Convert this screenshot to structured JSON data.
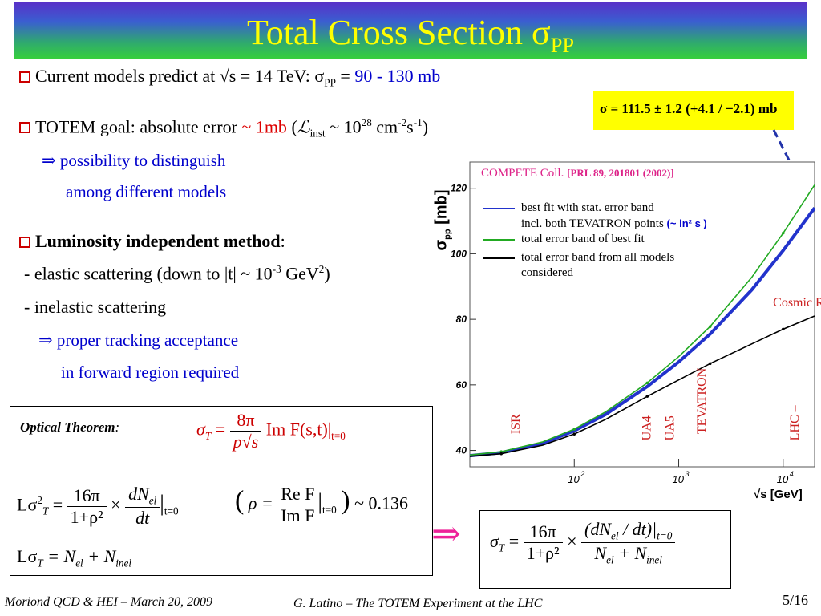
{
  "title": {
    "text": "Total Cross Section σ",
    "sub": "PP"
  },
  "bullets": {
    "b1": {
      "pre": "Current models predict at √s = 14 TeV: σ",
      "sub": "PP",
      "mid": " = ",
      "value": "90 - 130 mb"
    },
    "b2": {
      "pre": "TOTEM goal: absolute error  ",
      "value": "~ 1mb",
      "paren_open": " (",
      "lum": "ℒ",
      "lum_sub": "inst",
      "approx": " ~ 10",
      "exp1": "28",
      "unit1": " cm",
      "exp2": "-2",
      "unit2": "s",
      "exp3": "-1",
      "paren_close": ")"
    },
    "b2_sub1": "⇒ possibility to distinguish",
    "b2_sub2": "among different models",
    "b3": {
      "bold": "Luminosity independent method",
      "colon": ":"
    },
    "b3_l1": {
      "pre": "- elastic scattering (down to |t| ~ 10",
      "exp1": "-3",
      "mid": " GeV",
      "exp2": "2",
      "post": ")"
    },
    "b3_l2": "- inelastic scattering",
    "b3_sub1": "⇒ proper tracking acceptance",
    "b3_sub2": "in forward region required"
  },
  "optical": {
    "label": "Optical Theorem",
    "colon": ":",
    "eq1_lhs": "σ",
    "eq1_lhs_sub": "T",
    "eq1_num": "8π",
    "eq1_den": "p√s",
    "eq1_rhs": "Im F(s,t)|",
    "eq1_rhs_sub": "t=0",
    "eq2_lhs": "Lσ",
    "eq2_lhs_sup": "2",
    "eq2_lhs_sub": "T",
    "eq2_num": "16π",
    "eq2_den": "1+ρ²",
    "eq2_dnum": "dN",
    "eq2_dnum_sub": "el",
    "eq2_dden": "dt",
    "eq2_eval": "t=0",
    "rho_lhs": "ρ =",
    "rho_num": "Re F",
    "rho_den": "Im F",
    "rho_val": "~ 0.136",
    "eq3": "Lσ",
    "eq3_sub": "T",
    "eq3_rhs": "= N",
    "eq3_n1": "el",
    "eq3_plus": " + N",
    "eq3_n2": "inel"
  },
  "result": {
    "arrow": "⇒",
    "lhs": "σ",
    "lhs_sub": "T",
    "num": "16π",
    "den": "1+ρ²",
    "rnum": "(dN",
    "rnum_sub": "el",
    "rnum_post": " / dt)|",
    "rnum_eval": "t=0",
    "rden": "N",
    "rden_sub1": "el",
    "rden_mid": " + N",
    "rden_sub2": "inel"
  },
  "yellow_formula": "σ = 111.5 ± 1.2 (+4.1 / −2.1) mb",
  "chart_data": {
    "type": "line",
    "title": "COMPETE Coll.",
    "title_ref": "[PRL 89, 201801 (2002)]",
    "ylabel": "σ",
    "ylabel_sub": "pp",
    "ylabel_unit": "[mb]",
    "xlabel": "√s [GeV]",
    "xscale": "log",
    "xlim": [
      10,
      20000
    ],
    "ylim": [
      35,
      128
    ],
    "yticks": [
      40,
      60,
      80,
      100,
      120
    ],
    "xticks": [
      {
        "value": 100,
        "label": "10",
        "exp": "2"
      },
      {
        "value": 1000,
        "label": "10",
        "exp": "3"
      },
      {
        "value": 10000,
        "label": "10",
        "exp": "4"
      }
    ],
    "legend": [
      {
        "label": "best fit with stat. error band",
        "color": "#2233cc"
      },
      {
        "label": "incl. both TEVATRON points",
        "color": "#2233cc",
        "note": "(~ ln² s )"
      },
      {
        "label": "total error band of best fit",
        "color": "#22aa22"
      },
      {
        "label": "total error band from all models",
        "label2": "considered",
        "color": "#000000"
      }
    ],
    "series": [
      {
        "name": "best fit with stat. error band",
        "color": "#2233cc",
        "x": [
          10,
          20,
          50,
          100,
          200,
          500,
          1000,
          2000,
          5000,
          10000,
          20000
        ],
        "y": [
          38.4,
          39.3,
          42.2,
          46.0,
          51.0,
          59.5,
          67.0,
          75.5,
          89.0,
          101.0,
          114.0
        ]
      },
      {
        "name": "total error band of best fit",
        "color": "#22aa22",
        "x": [
          10,
          20,
          50,
          100,
          200,
          500,
          1000,
          2000,
          5000,
          10000,
          20000
        ],
        "y": [
          38.6,
          39.6,
          42.6,
          46.5,
          51.8,
          60.6,
          68.6,
          77.8,
          92.8,
          106.3,
          121.0
        ]
      },
      {
        "name": "total error band from all models considered",
        "color": "#000000",
        "x": [
          10,
          20,
          50,
          100,
          200,
          500,
          1000,
          2000,
          5000,
          10000,
          20000
        ],
        "y": [
          38.2,
          39.0,
          41.6,
          45.0,
          49.5,
          56.5,
          61.5,
          66.5,
          72.5,
          77.0,
          81.0
        ]
      }
    ],
    "annotations": [
      {
        "text": "ISR",
        "x": 30,
        "y": 45,
        "color": "#cc2222"
      },
      {
        "text": "UA4",
        "x": 540,
        "y": 43,
        "color": "#cc2222"
      },
      {
        "text": "UA5",
        "x": 900,
        "y": 43,
        "color": "#cc2222"
      },
      {
        "text": "TEVATRON",
        "x": 1800,
        "y": 45,
        "color": "#cc2222"
      },
      {
        "text": "LHC –",
        "x": 14000,
        "y": 43,
        "color": "#cc2222"
      },
      {
        "text": "Cosmic Rays",
        "x": 8000,
        "y": 84,
        "color": "#cc2222"
      }
    ]
  },
  "footer": {
    "left": "Moriond QCD & HEI – March 20, 2009",
    "center": "G. Latino – The TOTEM Experiment at the LHC",
    "page": "5/16"
  }
}
